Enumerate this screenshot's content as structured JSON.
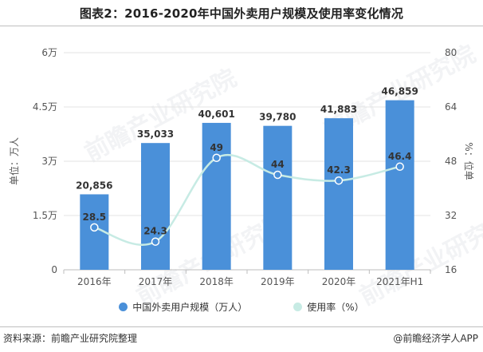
{
  "title": "图表2：2016-2020年中国外卖用户规模及使用率变化情况",
  "source": "资料来源：前瞻产业研究院整理",
  "brand": "@前瞻经济学人APP",
  "watermark": "前瞻产业研究院",
  "colors": {
    "bar": "#4a90d9",
    "line": "#c7ebe4",
    "marker": "#4a90d9",
    "grid": "#e3e3e3",
    "axis_text": "#555555"
  },
  "chart_data": {
    "type": "bar",
    "categories": [
      "2016年",
      "2017年",
      "2018年",
      "2019年",
      "2020年",
      "2021年H1"
    ],
    "series": [
      {
        "name": "中国外卖用户规模（万人）",
        "type": "bar",
        "axis": "left",
        "values": [
          20856,
          35033,
          40601,
          39780,
          41883,
          46859
        ],
        "labels": [
          "20,856",
          "35,033",
          "40,601",
          "39,780",
          "41,883",
          "46,859"
        ]
      },
      {
        "name": "使用率（%）",
        "type": "line",
        "axis": "right",
        "values": [
          28.5,
          24.3,
          49,
          44,
          42.3,
          46.4
        ],
        "labels": [
          "28.5",
          "24.3",
          "49",
          "44",
          "42.3",
          "46.4"
        ]
      }
    ],
    "ylabel": "单位：万人",
    "y2label": "%：位单",
    "ylim": [
      0,
      60000
    ],
    "y2lim": [
      16,
      80
    ],
    "yticks": [
      0,
      15000,
      30000,
      45000,
      60000
    ],
    "ytick_labels": [
      "0",
      "1.5万",
      "3万",
      "4.5万",
      "6万"
    ],
    "y2ticks": [
      16,
      32,
      48,
      64,
      80
    ],
    "y2tick_labels": [
      "16",
      "32",
      "48",
      "64",
      "80"
    ],
    "grid": true,
    "legend": "bottom"
  }
}
